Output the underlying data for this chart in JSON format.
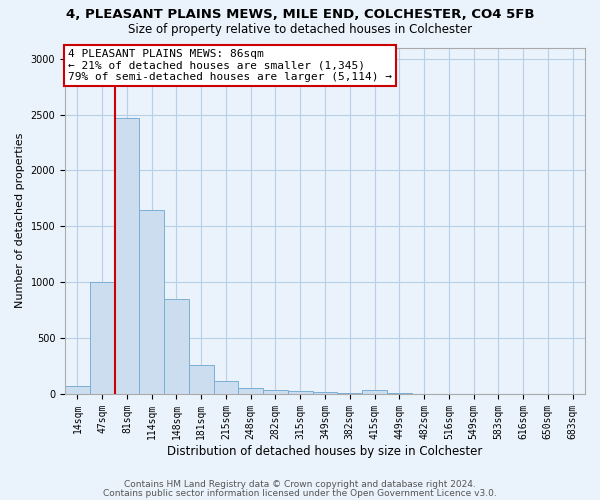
{
  "title1": "4, PLEASANT PLAINS MEWS, MILE END, COLCHESTER, CO4 5FB",
  "title2": "Size of property relative to detached houses in Colchester",
  "xlabel": "Distribution of detached houses by size in Colchester",
  "ylabel": "Number of detached properties",
  "bar_values": [
    75,
    1000,
    2470,
    1650,
    850,
    260,
    120,
    55,
    40,
    30,
    20,
    10,
    35,
    5,
    0,
    0,
    0,
    0,
    0,
    0,
    0
  ],
  "bar_labels": [
    "14sqm",
    "47sqm",
    "81sqm",
    "114sqm",
    "148sqm",
    "181sqm",
    "215sqm",
    "248sqm",
    "282sqm",
    "315sqm",
    "349sqm",
    "382sqm",
    "415sqm",
    "449sqm",
    "482sqm",
    "516sqm",
    "549sqm",
    "583sqm",
    "616sqm",
    "650sqm",
    "683sqm"
  ],
  "bar_color": "#ccddf0",
  "bar_edge_color": "#7aafd4",
  "marker_bar_index": 2,
  "marker_color": "#cc0000",
  "ylim": [
    0,
    3100
  ],
  "yticks": [
    0,
    500,
    1000,
    1500,
    2000,
    2500,
    3000
  ],
  "annotation_title": "4 PLEASANT PLAINS MEWS: 86sqm",
  "annotation_line1": "← 21% of detached houses are smaller (1,345)",
  "annotation_line2": "79% of semi-detached houses are larger (5,114) →",
  "annotation_box_facecolor": "#ffffff",
  "annotation_box_edgecolor": "#cc0000",
  "footer1": "Contains HM Land Registry data © Crown copyright and database right 2024.",
  "footer2": "Contains public sector information licensed under the Open Government Licence v3.0.",
  "bg_color": "#eaf2fb",
  "plot_bg_color": "#eaf2fb",
  "grid_color": "#b8cfe8",
  "title1_fontsize": 9.5,
  "title2_fontsize": 8.5,
  "xlabel_fontsize": 8.5,
  "ylabel_fontsize": 8,
  "tick_fontsize": 7,
  "annotation_fontsize": 8,
  "footer_fontsize": 6.5
}
